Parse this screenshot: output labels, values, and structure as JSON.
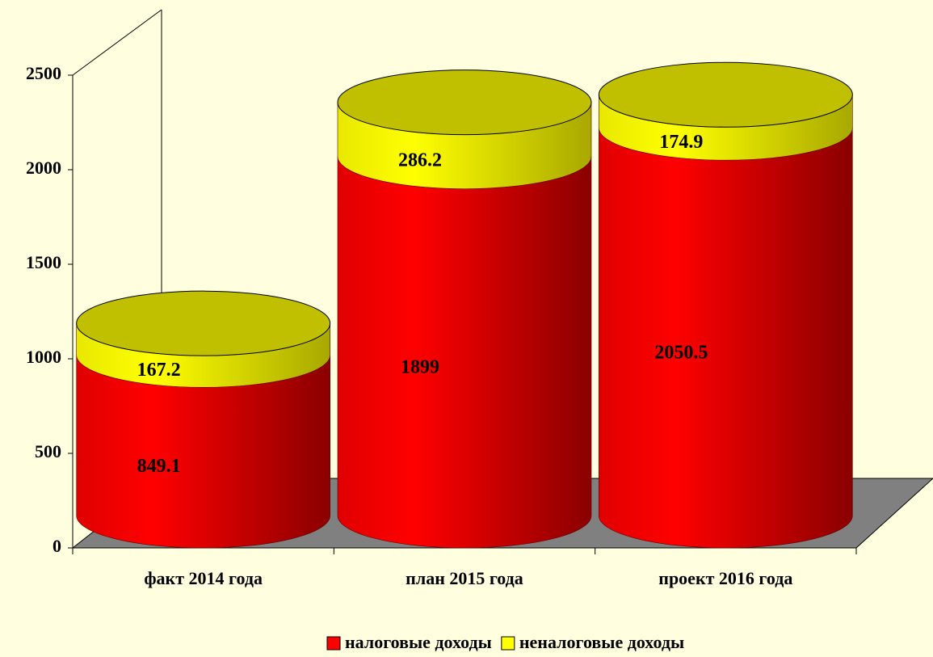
{
  "chart_data": {
    "type": "cylinder-stacked",
    "categories": [
      "факт 2014 года",
      "план 2015 года",
      "проект 2016 года"
    ],
    "series": [
      {
        "name": "налоговые доходы",
        "color": "#ff0000",
        "values": [
          849.1,
          1899,
          2050.5
        ]
      },
      {
        "name": "неналоговые доходы",
        "color": "#ffff00",
        "values": [
          167.2,
          286.2,
          174.9
        ]
      }
    ],
    "ylim": [
      0,
      2500
    ],
    "yticks": [
      0,
      500,
      1000,
      1500,
      2000,
      2500
    ]
  }
}
